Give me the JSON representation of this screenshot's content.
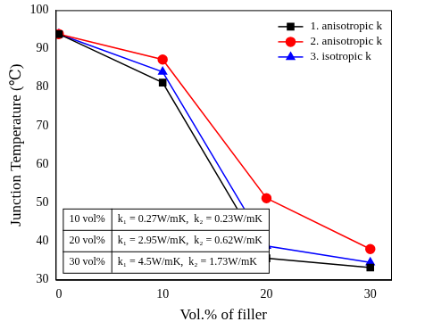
{
  "chart_data": {
    "type": "line",
    "x_label": "Vol.% of filler",
    "y_label": "Junction Temperature (℃)",
    "x": [
      0,
      10,
      20,
      30
    ],
    "xlim": [
      -0.3,
      32
    ],
    "xticks": [
      0,
      10,
      20,
      30
    ],
    "ylim": [
      30,
      100
    ],
    "yticks": [
      30,
      40,
      50,
      60,
      70,
      80,
      90,
      100
    ],
    "grid": false,
    "legend": "upper right",
    "series": [
      {
        "name": "1. anisotropic k",
        "color": "#000000",
        "marker": "square",
        "line_style": "solid",
        "values": [
          93.8,
          81.2,
          35.6,
          33.2
        ]
      },
      {
        "name": "2. anisotropic k",
        "color": "#ff0000",
        "marker": "circle",
        "line_style": "solid",
        "values": [
          93.8,
          87.2,
          51.2,
          38.0
        ]
      },
      {
        "name": "3. isotropic k",
        "color": "#0000ff",
        "marker": "triangle",
        "line_style": "solid",
        "values": [
          93.8,
          84.0,
          38.8,
          34.5
        ]
      }
    ],
    "annotations": [
      {
        "label": "10 vol%",
        "text": "k₁ = 0.27W/mK,  k₂ = 0.23W/mK"
      },
      {
        "label": "20 vol%",
        "text": "k₁ = 2.95W/mK,  k₂ = 0.62W/mK"
      },
      {
        "label": "30 vol%",
        "text": "k₁ = 4.5W/mK,  k₂ = 1.73W/mK"
      }
    ]
  }
}
